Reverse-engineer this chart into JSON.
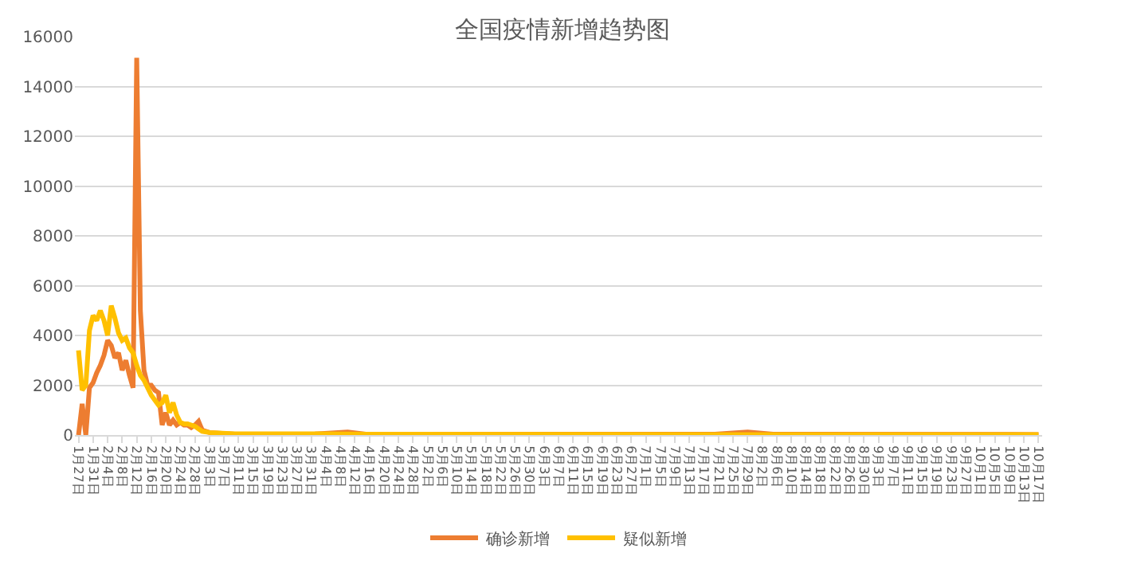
{
  "chart_data": {
    "type": "line",
    "title": "全国疫情新增趋势图",
    "x": [
      "--01-27",
      "--01-28",
      "--01-29",
      "--01-30",
      "--01-31",
      "--02-01",
      "--02-02",
      "--02-03",
      "--02-04",
      "--02-05",
      "--02-06",
      "--02-07",
      "--02-08",
      "--02-09",
      "--02-10",
      "--02-11",
      "--02-12",
      "--02-13",
      "--02-14",
      "--02-15",
      "--02-16",
      "--02-17",
      "--02-18",
      "--02-19",
      "--02-20",
      "--02-21",
      "--02-22",
      "--02-23",
      "--02-24",
      "--02-25",
      "--02-26",
      "--02-27",
      "--02-28",
      "--02-29",
      "--03-01",
      "--03-03",
      "--03-10",
      "--04-01",
      "--04-10",
      "--04-15",
      "--07-20",
      "--07-29",
      "--08-05",
      "--10-17"
    ],
    "series": [
      {
        "name": "确诊新增",
        "color": "#ed7d31",
        "values": [
          0,
          1250,
          0,
          1900,
          2100,
          2500,
          2800,
          3200,
          3800,
          3600,
          3100,
          3300,
          2600,
          3000,
          2400,
          1900,
          15150,
          5000,
          2600,
          2000,
          2000,
          1800,
          1700,
          400,
          900,
          400,
          600,
          400,
          500,
          400,
          400,
          300,
          400,
          550,
          200,
          100,
          30,
          40,
          120,
          30,
          30,
          120,
          30,
          20
        ]
      },
      {
        "name": "疑似新增",
        "color": "#ffc000",
        "values": [
          3400,
          1800,
          2000,
          4200,
          4800,
          4600,
          5000,
          4600,
          4000,
          5200,
          4700,
          4100,
          3800,
          3900,
          3500,
          3300,
          2800,
          2400,
          2200,
          1900,
          1600,
          1400,
          1200,
          1300,
          1600,
          900,
          1300,
          800,
          500,
          450,
          450,
          400,
          350,
          250,
          150,
          100,
          50,
          50,
          40,
          30,
          20,
          20,
          20,
          20
        ]
      }
    ],
    "xlim": [
      "--01-26",
      "--10-18"
    ],
    "xticks": [
      {
        "value": "--01-27",
        "label": "1月27日"
      },
      {
        "value": "--01-31",
        "label": "1月31日"
      },
      {
        "value": "--02-04",
        "label": "2月4日"
      },
      {
        "value": "--02-08",
        "label": "2月8日"
      },
      {
        "value": "--02-12",
        "label": "2月12日"
      },
      {
        "value": "--02-16",
        "label": "2月16日"
      },
      {
        "value": "--02-20",
        "label": "2月20日"
      },
      {
        "value": "--02-24",
        "label": "2月24日"
      },
      {
        "value": "--02-28",
        "label": "2月28日"
      },
      {
        "value": "--03-03",
        "label": "3月3日"
      },
      {
        "value": "--03-07",
        "label": "3月7日"
      },
      {
        "value": "--03-11",
        "label": "3月11日"
      },
      {
        "value": "--03-15",
        "label": "3月15日"
      },
      {
        "value": "--03-19",
        "label": "3月19日"
      },
      {
        "value": "--03-23",
        "label": "3月23日"
      },
      {
        "value": "--03-27",
        "label": "3月27日"
      },
      {
        "value": "--03-31",
        "label": "3月31日"
      },
      {
        "value": "--04-04",
        "label": "4月4日"
      },
      {
        "value": "--04-08",
        "label": "4月8日"
      },
      {
        "value": "--04-12",
        "label": "4月12日"
      },
      {
        "value": "--04-16",
        "label": "4月16日"
      },
      {
        "value": "--04-20",
        "label": "4月20日"
      },
      {
        "value": "--04-24",
        "label": "4月24日"
      },
      {
        "value": "--04-28",
        "label": "4月28日"
      },
      {
        "value": "--05-02",
        "label": "5月2日"
      },
      {
        "value": "--05-06",
        "label": "5月6日"
      },
      {
        "value": "--05-10",
        "label": "5月10日"
      },
      {
        "value": "--05-14",
        "label": "5月14日"
      },
      {
        "value": "--05-18",
        "label": "5月18日"
      },
      {
        "value": "--05-22",
        "label": "5月22日"
      },
      {
        "value": "--05-26",
        "label": "5月26日"
      },
      {
        "value": "--05-30",
        "label": "5月30日"
      },
      {
        "value": "--06-03",
        "label": "6月3日"
      },
      {
        "value": "--06-07",
        "label": "6月7日"
      },
      {
        "value": "--06-11",
        "label": "6月11日"
      },
      {
        "value": "--06-15",
        "label": "6月15日"
      },
      {
        "value": "--06-19",
        "label": "6月19日"
      },
      {
        "value": "--06-23",
        "label": "6月23日"
      },
      {
        "value": "--06-27",
        "label": "6月27日"
      },
      {
        "value": "--07-01",
        "label": "7月1日"
      },
      {
        "value": "--07-05",
        "label": "7月5日"
      },
      {
        "value": "--07-09",
        "label": "7月9日"
      },
      {
        "value": "--07-13",
        "label": "7月13日"
      },
      {
        "value": "--07-17",
        "label": "7月17日"
      },
      {
        "value": "--07-21",
        "label": "7月21日"
      },
      {
        "value": "--07-25",
        "label": "7月25日"
      },
      {
        "value": "--07-29",
        "label": "7月29日"
      },
      {
        "value": "--08-02",
        "label": "8月2日"
      },
      {
        "value": "--08-06",
        "label": "8月6日"
      },
      {
        "value": "--08-10",
        "label": "8月10日"
      },
      {
        "value": "--08-14",
        "label": "8月14日"
      },
      {
        "value": "--08-18",
        "label": "8月18日"
      },
      {
        "value": "--08-22",
        "label": "8月22日"
      },
      {
        "value": "--08-26",
        "label": "8月26日"
      },
      {
        "value": "--08-30",
        "label": "8月30日"
      },
      {
        "value": "--09-03",
        "label": "9月3日"
      },
      {
        "value": "--09-07",
        "label": "9月7日"
      },
      {
        "value": "--09-11",
        "label": "9月11日"
      },
      {
        "value": "--09-15",
        "label": "9月15日"
      },
      {
        "value": "--09-19",
        "label": "9月19日"
      },
      {
        "value": "--09-23",
        "label": "9月23日"
      },
      {
        "value": "--09-27",
        "label": "9月27日"
      },
      {
        "value": "--10-01",
        "label": "10月1日"
      },
      {
        "value": "--10-05",
        "label": "10月5日"
      },
      {
        "value": "--10-09",
        "label": "10月9日"
      },
      {
        "value": "--10-13",
        "label": "10月13日"
      },
      {
        "value": "--10-17",
        "label": "10月17日"
      }
    ],
    "ylim": [
      0,
      16000
    ],
    "yticks": [
      0,
      2000,
      4000,
      6000,
      8000,
      10000,
      12000,
      14000,
      16000
    ],
    "grid": "y",
    "legend": "bottom",
    "marker": "none",
    "line_style": "solid"
  }
}
